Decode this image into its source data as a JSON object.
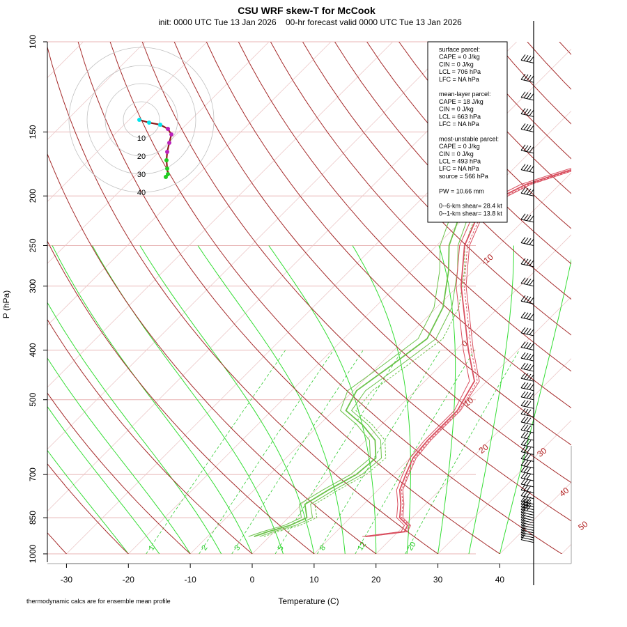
{
  "title": "CSU WRF skew-T for McCook",
  "subtitle": "init: 0000 UTC Tue 13 Jan 2026    00-hr forecast valid 0000 UTC Tue 13 Jan 2026",
  "footnote": "thermodynamic calcs are for ensemble mean profile",
  "stats_box": [
    "surface parcel:",
    "CAPE = 0 J/kg",
    "CIN = 0 J/kg",
    "LCL = 706 hPa",
    "LFC = NA hPa",
    "",
    "mean-layer parcel:",
    "CAPE = 18 J/kg",
    "CIN = 0 J/kg",
    "LCL = 663 hPa",
    "LFC = NA hPa",
    "",
    "most-unstable parcel:",
    "CAPE = 0 J/kg",
    "CIN = 0 J/kg",
    "LCL = 493 hPa",
    "LFC = NA hPa",
    "source = 566 hPa",
    "",
    "PW =  10.66 mm",
    "",
    "0--6-km shear= 28.4 kt",
    "0--1-km shear= 13.8 kt"
  ],
  "colors": {
    "isobar": "#e8b4b4",
    "isotherm": "#ecc8c8",
    "dry_adiabat": "#a52a2a",
    "moist_adiabat": "#33dd33",
    "mixing_ratio": "#33cc33",
    "temperature": "#d94f5f",
    "dewpoint": "#6cc24a",
    "hodo_ring": "#c0c0c0",
    "hodo_low": "#22cc22",
    "hodo_high": "#bb22bb",
    "hodo_trace": "#8b1a1a",
    "barb": "#000000"
  },
  "chart_data": {
    "type": "skew-t",
    "title": "CSU WRF skew-T for McCook",
    "xlabel": "Temperature (C)",
    "ylabel": "P (hPa)",
    "pressure_ticks": [
      100,
      150,
      200,
      250,
      300,
      400,
      500,
      700,
      850,
      1000
    ],
    "temp_ticks": [
      -30,
      -20,
      -10,
      0,
      10,
      20,
      30,
      40
    ],
    "pressure_range": [
      1000,
      100
    ],
    "temp_range_at_bottom": [
      -33,
      52
    ],
    "isotherm_labels": [
      -10,
      0,
      10,
      20,
      30,
      40,
      50
    ],
    "mixing_ratio_labels": [
      "1",
      "2",
      "3",
      "5",
      "8",
      "12",
      "20"
    ],
    "temperature_profile": [
      {
        "p": 925,
        "t": 15.5
      },
      {
        "p": 905,
        "t": 21.0
      },
      {
        "p": 880,
        "t": 20.5
      },
      {
        "p": 850,
        "t": 18.0
      },
      {
        "p": 800,
        "t": 16.0
      },
      {
        "p": 750,
        "t": 13.5
      },
      {
        "p": 700,
        "t": 12.0
      },
      {
        "p": 650,
        "t": 10.5
      },
      {
        "p": 600,
        "t": 10.0
      },
      {
        "p": 560,
        "t": 10.0
      },
      {
        "p": 525,
        "t": 10.0
      },
      {
        "p": 460,
        "t": 8.0
      },
      {
        "p": 400,
        "t": 2.0
      },
      {
        "p": 300,
        "t": -9.5
      },
      {
        "p": 250,
        "t": -15.5
      },
      {
        "p": 210,
        "t": -19.0
      },
      {
        "p": 190,
        "t": -15.5
      },
      {
        "p": 180,
        "t": -11.5
      },
      {
        "p": 160,
        "t": -2.0
      },
      {
        "p": 140,
        "t": 5.0
      },
      {
        "p": 125,
        "t": 12.0
      },
      {
        "p": 112,
        "t": 16.5
      }
    ],
    "dewpoint_profile": [
      {
        "p": 925,
        "t": -2.5
      },
      {
        "p": 905,
        "t": -1.0
      },
      {
        "p": 880,
        "t": 1.5
      },
      {
        "p": 850,
        "t": 3.0
      },
      {
        "p": 800,
        "t": 0.5
      },
      {
        "p": 750,
        "t": 2.0
      },
      {
        "p": 700,
        "t": 4.0
      },
      {
        "p": 650,
        "t": 4.5
      },
      {
        "p": 600,
        "t": 1.5
      },
      {
        "p": 560,
        "t": -3.0
      },
      {
        "p": 525,
        "t": -8.0
      },
      {
        "p": 480,
        "t": -9.5
      },
      {
        "p": 430,
        "t": -8.0
      },
      {
        "p": 380,
        "t": -6.5
      },
      {
        "p": 330,
        "t": -9.0
      },
      {
        "p": 280,
        "t": -14.0
      },
      {
        "p": 250,
        "t": -18.0
      },
      {
        "p": 215,
        "t": -21.5
      },
      {
        "p": 200,
        "t": -22.0
      }
    ],
    "wind_barbs_hPa": [
      950,
      940,
      930,
      920,
      910,
      900,
      890,
      880,
      870,
      860,
      850,
      840,
      830,
      820,
      810,
      800,
      780,
      760,
      740,
      720,
      700,
      680,
      660,
      640,
      620,
      600,
      580,
      560,
      540,
      520,
      500,
      480,
      460,
      440,
      420,
      400,
      375,
      350,
      325,
      300,
      275,
      250,
      225,
      200,
      180,
      165,
      150,
      140,
      130,
      120,
      110
    ],
    "hodograph": {
      "rings_kt": [
        10,
        20,
        30,
        40
      ],
      "labels": [
        "10",
        "20",
        "30",
        "40"
      ]
    }
  }
}
